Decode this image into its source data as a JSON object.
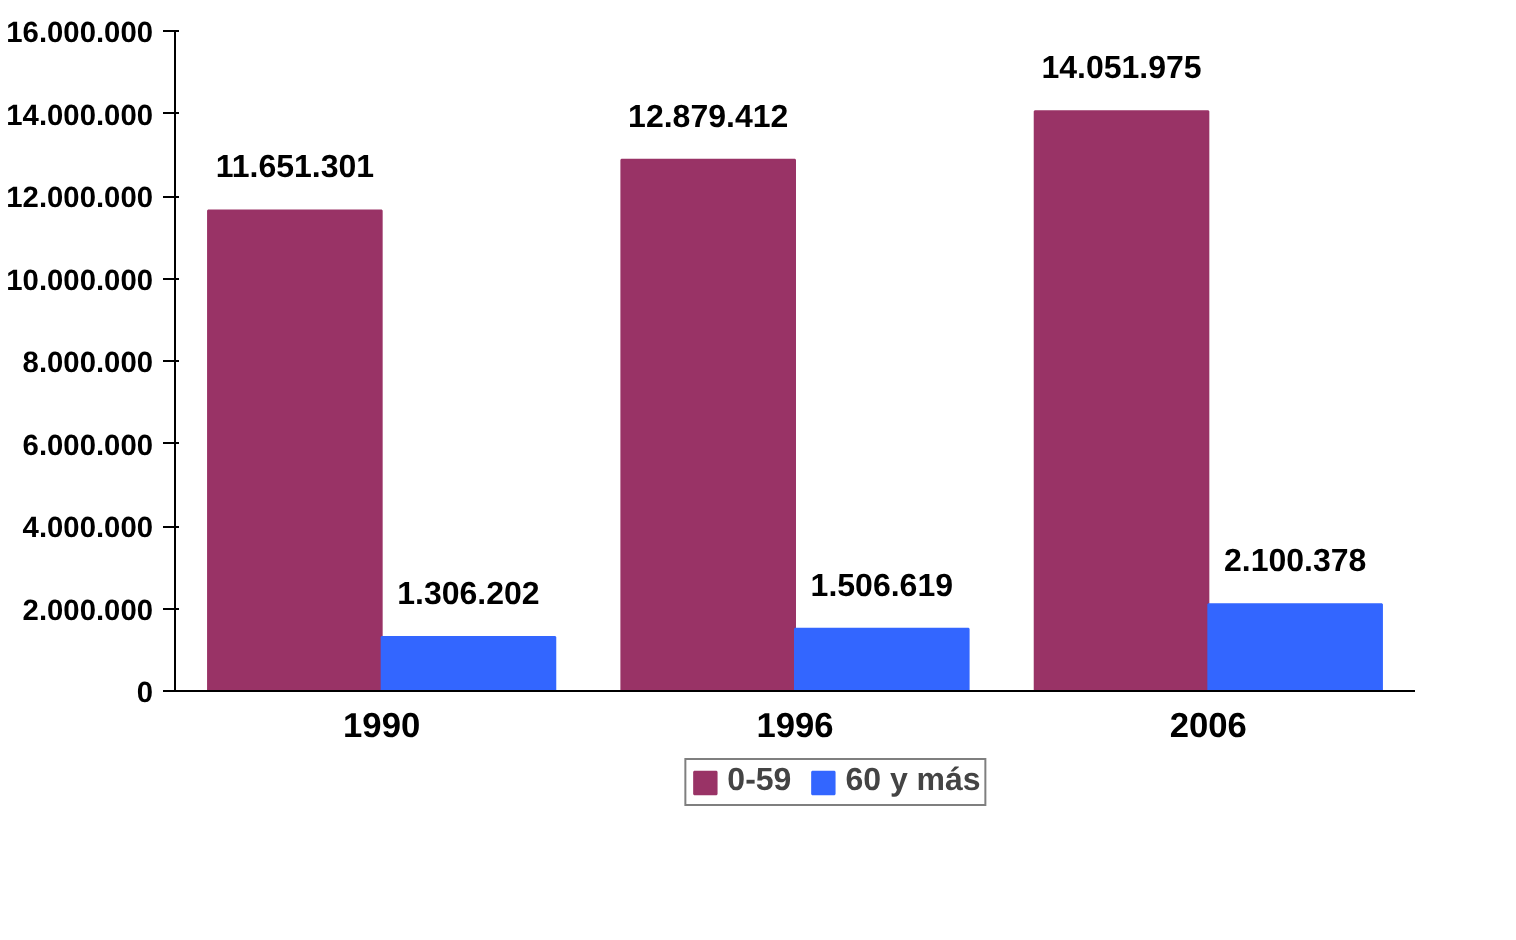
{
  "chart_data": {
    "type": "bar",
    "categories": [
      "1990",
      "1996",
      "2006"
    ],
    "series": [
      {
        "name": "0-59",
        "color": "#993366",
        "values": [
          11651301,
          12879412,
          14051975
        ],
        "value_labels": [
          "11.651.301",
          "12.879.412",
          "14.051.975"
        ]
      },
      {
        "name": "60 y más",
        "color": "#3366ff",
        "values": [
          1306202,
          1506619,
          2100378
        ],
        "value_labels": [
          "1.306.202",
          "1.506.619",
          "2.100.378"
        ]
      }
    ],
    "ylim": [
      0,
      16000000
    ],
    "yticks": [
      {
        "value": 0,
        "label": "0"
      },
      {
        "value": 2000000,
        "label": "2.000.000"
      },
      {
        "value": 4000000,
        "label": "4.000.000"
      },
      {
        "value": 6000000,
        "label": "6.000.000"
      },
      {
        "value": 8000000,
        "label": "8.000.000"
      },
      {
        "value": 10000000,
        "label": "10.000.000"
      },
      {
        "value": 12000000,
        "label": "12.000.000"
      },
      {
        "value": 14000000,
        "label": "14.000.000"
      },
      {
        "value": 16000000,
        "label": "16.000.000"
      }
    ],
    "grid": false,
    "legend": "bottom"
  }
}
